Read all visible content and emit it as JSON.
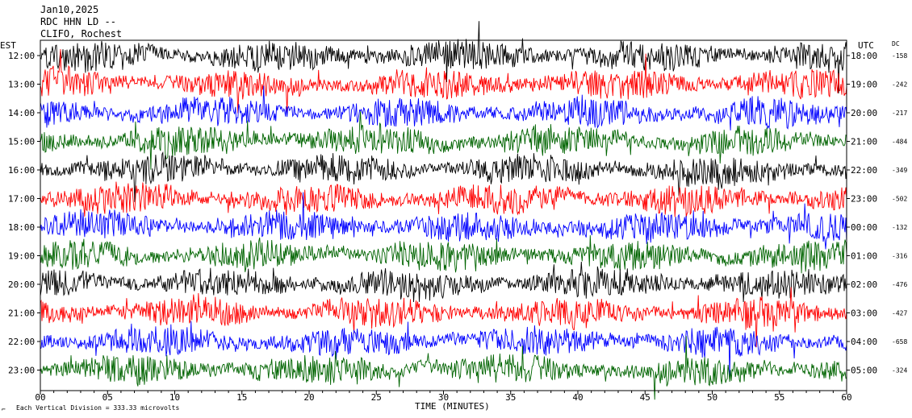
{
  "header": {
    "date": "Jan10,2025",
    "station": "RDC HHN LD --",
    "network": "CLIFO, Rochest"
  },
  "chart_data": {
    "type": "line",
    "title": "",
    "left_axis_label": "EST",
    "right_axis_label": "UTC",
    "dc_label": "DC",
    "xlabel": "TIME (MINUTES)",
    "xlim": [
      0,
      60
    ],
    "x_ticks": [
      "00",
      "05",
      "10",
      "15",
      "20",
      "25",
      "30",
      "35",
      "40",
      "45",
      "50",
      "55",
      "60"
    ],
    "grid": false,
    "trace_colors": [
      "#000000",
      "#ff0000",
      "#0000ff",
      "#006400"
    ],
    "rows": [
      {
        "est": "12:00",
        "utc": "18:00",
        "dc": "-158",
        "color": "#000000"
      },
      {
        "est": "13:00",
        "utc": "19:00",
        "dc": "-242",
        "color": "#ff0000"
      },
      {
        "est": "14:00",
        "utc": "20:00",
        "dc": "-217",
        "color": "#0000ff"
      },
      {
        "est": "15:00",
        "utc": "21:00",
        "dc": "-484",
        "color": "#006400"
      },
      {
        "est": "16:00",
        "utc": "22:00",
        "dc": "-349",
        "color": "#000000"
      },
      {
        "est": "17:00",
        "utc": "23:00",
        "dc": "-502",
        "color": "#ff0000"
      },
      {
        "est": "18:00",
        "utc": "00:00",
        "dc": "-132",
        "color": "#0000ff"
      },
      {
        "est": "19:00",
        "utc": "01:00",
        "dc": "-316",
        "color": "#006400"
      },
      {
        "est": "20:00",
        "utc": "02:00",
        "dc": "-476",
        "color": "#000000"
      },
      {
        "est": "21:00",
        "utc": "03:00",
        "dc": "-427",
        "color": "#ff0000"
      },
      {
        "est": "22:00",
        "utc": "04:00",
        "dc": "-658",
        "color": "#0000ff"
      },
      {
        "est": "23:00",
        "utc": "05:00",
        "dc": "-324",
        "color": "#006400"
      }
    ],
    "footer_note": "Each Vertical Division =  333.33 microvolts"
  }
}
